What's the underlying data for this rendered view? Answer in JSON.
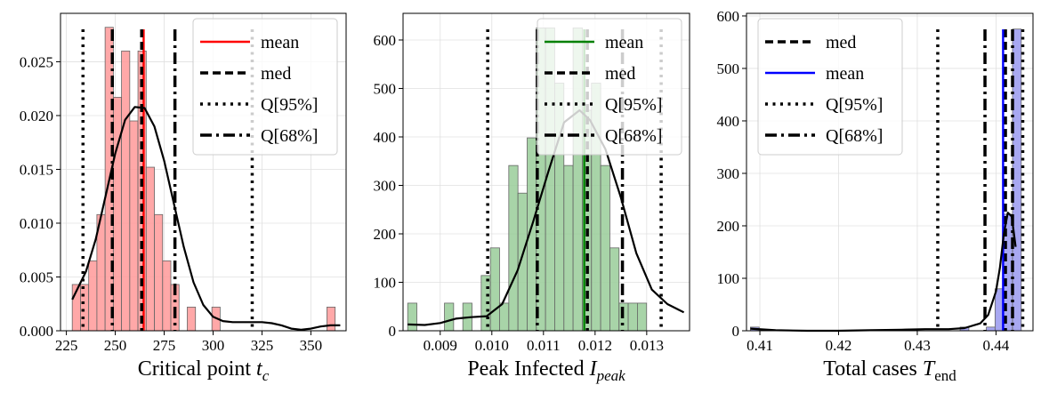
{
  "chart_data": [
    {
      "type": "bar",
      "xlabel_main": "Critical point ",
      "xlabel_sym": "t",
      "xlabel_sub": "c",
      "xlim": [
        222,
        368
      ],
      "ylim": [
        0,
        0.0295
      ],
      "xticks": [
        225,
        250,
        275,
        300,
        325,
        350
      ],
      "xtick_labels": [
        "225",
        "250",
        "275",
        "300",
        "325",
        "350"
      ],
      "yticks": [
        0,
        0.005,
        0.01,
        0.015,
        0.02,
        0.025
      ],
      "ytick_labels": [
        "0.000",
        "0.005",
        "0.010",
        "0.015",
        "0.020",
        "0.025"
      ],
      "grid": true,
      "legend_position": "top-right",
      "colors": {
        "bars": "#ff9999",
        "bar_edge": "#666666",
        "mean": "#ff0000",
        "kde": "#000000"
      },
      "hist_bins_start": 228,
      "hist_bin_width": 4.2,
      "hist_values": [
        0.0043,
        0.0043,
        0.0065,
        0.0108,
        0.0282,
        0.0217,
        0.026,
        0.0195,
        0.026,
        0.0152,
        0.0108,
        0.0065,
        0.0043,
        0,
        0.0022,
        0,
        0,
        0.0022,
        0,
        0,
        0,
        0,
        0,
        0,
        0,
        0,
        0,
        0,
        0,
        0,
        0,
        0.0022
      ],
      "kde_x": [
        228,
        235,
        240,
        245,
        250,
        255,
        260,
        265,
        270,
        275,
        280,
        285,
        290,
        295,
        300,
        305,
        310,
        315,
        320,
        325,
        330,
        335,
        340,
        345,
        350,
        355,
        360,
        365
      ],
      "kde_y": [
        0.0029,
        0.0055,
        0.0085,
        0.0125,
        0.0165,
        0.0196,
        0.0208,
        0.0207,
        0.019,
        0.0158,
        0.0118,
        0.0078,
        0.0045,
        0.0024,
        0.0013,
        0.0009,
        0.0008,
        0.0008,
        0.0008,
        0.0008,
        0.0007,
        0.0005,
        0.0002,
        0.0001,
        0.0002,
        0.0004,
        0.0005,
        0.0005
      ],
      "vlines": [
        {
          "series": "mean",
          "x": 264.5,
          "style": "solid"
        },
        {
          "series": "med",
          "x": 263.5,
          "style": "dashed"
        },
        {
          "series": "Q[95%]",
          "x": 233.5,
          "style": "dotted"
        },
        {
          "series": "Q[95%]",
          "x": 320,
          "style": "dotted"
        },
        {
          "series": "Q[68%]",
          "x": 248.5,
          "style": "dashdot"
        },
        {
          "series": "Q[68%]",
          "x": 280.5,
          "style": "dashdot"
        }
      ],
      "legend": [
        {
          "label": "mean",
          "style": "solid",
          "color": "#ff0000"
        },
        {
          "label": "med",
          "style": "dashed",
          "color": "#000000"
        },
        {
          "label": "Q[95%]",
          "style": "dotted",
          "color": "#000000"
        },
        {
          "label": "Q[68%]",
          "style": "dashdot",
          "color": "#000000"
        }
      ]
    },
    {
      "type": "bar",
      "xlabel_main": "Peak Infected ",
      "xlabel_sym": "I",
      "xlabel_sub": "peak",
      "xlim": [
        0.00828,
        0.01383
      ],
      "ylim": [
        0,
        655
      ],
      "xticks": [
        0.009,
        0.01,
        0.011,
        0.012,
        0.013
      ],
      "xtick_labels": [
        "0.009",
        "0.010",
        "0.011",
        "0.012",
        "0.013"
      ],
      "yticks": [
        0,
        100,
        200,
        300,
        400,
        500,
        600
      ],
      "ytick_labels": [
        "0",
        "100",
        "200",
        "300",
        "400",
        "500",
        "600"
      ],
      "grid": true,
      "legend_position": "top-right",
      "colors": {
        "bars": "#99cc99",
        "bar_edge": "#666666",
        "mean": "#008000",
        "kde": "#000000"
      },
      "hist_bins_start": 0.00837,
      "hist_bin_width": 0.000178,
      "hist_values": [
        57,
        0,
        0,
        0,
        57,
        0,
        57,
        0,
        114,
        171,
        57,
        341,
        284,
        398,
        625,
        625,
        511,
        341,
        625,
        455,
        511,
        341,
        171,
        57,
        57,
        57
      ],
      "kde_x": [
        0.00837,
        0.0087,
        0.009,
        0.0093,
        0.0096,
        0.0099,
        0.0102,
        0.0105,
        0.0108,
        0.0111,
        0.0114,
        0.0117,
        0.0119,
        0.0122,
        0.0125,
        0.0128,
        0.0131,
        0.0134,
        0.01372
      ],
      "kde_y": [
        13,
        12,
        16,
        25,
        28,
        30,
        55,
        125,
        225,
        330,
        430,
        455,
        435,
        375,
        275,
        160,
        85,
        55,
        38
      ],
      "vlines": [
        {
          "series": "mean",
          "x": 0.01179,
          "style": "solid"
        },
        {
          "series": "med",
          "x": 0.01185,
          "style": "dashed"
        },
        {
          "series": "Q[95%]",
          "x": 0.00992,
          "style": "dotted"
        },
        {
          "series": "Q[95%]",
          "x": 0.01328,
          "style": "dotted"
        },
        {
          "series": "Q[68%]",
          "x": 0.01088,
          "style": "dashdot"
        },
        {
          "series": "Q[68%]",
          "x": 0.01253,
          "style": "dashdot"
        }
      ],
      "legend": [
        {
          "label": "mean",
          "style": "solid",
          "color": "#008000"
        },
        {
          "label": "med",
          "style": "dashed",
          "color": "#000000"
        },
        {
          "label": "Q[95%]",
          "style": "dotted",
          "color": "#000000"
        },
        {
          "label": "Q[68%]",
          "style": "dashdot",
          "color": "#000000"
        }
      ]
    },
    {
      "type": "bar",
      "xlabel_main": "Total cases ",
      "xlabel_sym": "T",
      "xlabel_sub": "end",
      "xlim": [
        0.4083,
        0.4447
      ],
      "ylim": [
        0,
        605
      ],
      "xticks": [
        0.41,
        0.42,
        0.43,
        0.44
      ],
      "xtick_labels": [
        "0.41",
        "0.42",
        "0.43",
        "0.44"
      ],
      "yticks": [
        0,
        100,
        200,
        300,
        400,
        500,
        600
      ],
      "ytick_labels": [
        "0",
        "100",
        "200",
        "300",
        "400",
        "500",
        "600"
      ],
      "grid": true,
      "legend_position": "top-left",
      "colors": {
        "bars": "#9999ee",
        "bar_edge": "#666666",
        "mean": "#0000ff",
        "kde": "#000000"
      },
      "hist_bins_start": 0.4088,
      "hist_bin_width": 0.00111,
      "hist_values": [
        7,
        0,
        0,
        0,
        0,
        0,
        0,
        0,
        0,
        0,
        0,
        0,
        0,
        0,
        0,
        0,
        0,
        0,
        0,
        0,
        0,
        0,
        0,
        0,
        7,
        0,
        0,
        7,
        80,
        222,
        575
      ],
      "kde_x": [
        0.4088,
        0.412,
        0.416,
        0.42,
        0.424,
        0.428,
        0.431,
        0.434,
        0.436,
        0.438,
        0.439,
        0.44,
        0.4405,
        0.441,
        0.4415,
        0.442,
        0.4425
      ],
      "kde_y": [
        4,
        1,
        0,
        0,
        1,
        2,
        3,
        3,
        5,
        14,
        30,
        75,
        120,
        185,
        225,
        218,
        160
      ],
      "vlines": [
        {
          "series": "med",
          "x": 0.4412,
          "style": "dashed"
        },
        {
          "series": "mean",
          "x": 0.4409,
          "style": "solid"
        },
        {
          "series": "Q[95%]",
          "x": 0.4326,
          "style": "dotted"
        },
        {
          "series": "Q[95%]",
          "x": 0.4434,
          "style": "dotted"
        },
        {
          "series": "Q[68%]",
          "x": 0.4386,
          "style": "dashdot"
        },
        {
          "series": "Q[68%]",
          "x": 0.4421,
          "style": "dashdot"
        }
      ],
      "legend": [
        {
          "label": "med",
          "style": "dashed",
          "color": "#000000"
        },
        {
          "label": "mean",
          "style": "solid",
          "color": "#0000ff"
        },
        {
          "label": "Q[95%]",
          "style": "dotted",
          "color": "#000000"
        },
        {
          "label": "Q[68%]",
          "style": "dashdot",
          "color": "#000000"
        }
      ]
    }
  ]
}
